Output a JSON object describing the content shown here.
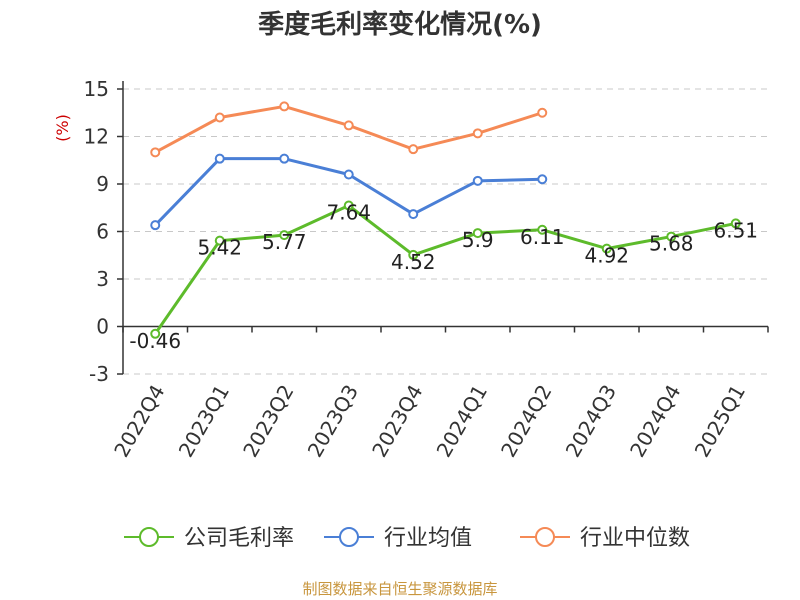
{
  "chart_data": {
    "type": "line",
    "title": "季度毛利率变化情况(%)",
    "ylabel": "(%)",
    "xlabel": "",
    "ylim": [
      -3,
      15
    ],
    "yticks": [
      -3,
      0,
      3,
      6,
      9,
      12,
      15
    ],
    "grid": true,
    "legend_position": "bottom",
    "categories": [
      "2022Q4",
      "2023Q1",
      "2023Q2",
      "2023Q3",
      "2023Q4",
      "2024Q1",
      "2024Q2",
      "2024Q3",
      "2024Q4",
      "2025Q1"
    ],
    "series": [
      {
        "name": "公司毛利率",
        "color": "#5dbb2b",
        "values": [
          -0.46,
          5.42,
          5.77,
          7.64,
          4.52,
          5.9,
          6.11,
          4.92,
          5.68,
          6.51
        ],
        "labels": [
          "-0.46",
          "5.42",
          "5.77",
          "7.64",
          "4.52",
          "5.9",
          "6.11",
          "4.92",
          "5.68",
          "6.51"
        ]
      },
      {
        "name": "行业均值",
        "color": "#4a7fd6",
        "values": [
          6.4,
          10.6,
          10.6,
          9.6,
          7.1,
          9.2,
          9.3,
          null,
          null,
          null
        ]
      },
      {
        "name": "行业中位数",
        "color": "#f58a56",
        "values": [
          11.0,
          13.2,
          13.9,
          12.7,
          11.2,
          12.2,
          13.5,
          null,
          null,
          null
        ]
      }
    ]
  },
  "source": "制图数据来自恒生聚源数据库"
}
